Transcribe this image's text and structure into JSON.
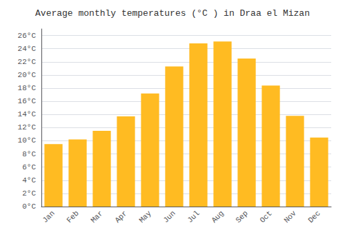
{
  "chart_data": {
    "type": "bar",
    "title": "Average monthly temperatures (°C ) in Draa el Mizan",
    "categories": [
      "Jan",
      "Feb",
      "Mar",
      "Apr",
      "May",
      "Jun",
      "Jul",
      "Aug",
      "Sep",
      "Oct",
      "Nov",
      "Dec"
    ],
    "values": [
      9.5,
      10.2,
      11.5,
      13.7,
      17.2,
      21.3,
      24.8,
      25.1,
      22.5,
      18.4,
      13.8,
      10.5
    ],
    "color": "#FFBB22",
    "ylim": [
      0,
      27
    ],
    "yticks": [
      {
        "value": 0,
        "label": "0°C"
      },
      {
        "value": 2,
        "label": "2°C"
      },
      {
        "value": 4,
        "label": "4°C"
      },
      {
        "value": 6,
        "label": "6°C"
      },
      {
        "value": 8,
        "label": "8°C"
      },
      {
        "value": 10,
        "label": "10°C"
      },
      {
        "value": 12,
        "label": "12°C"
      },
      {
        "value": 14,
        "label": "14°C"
      },
      {
        "value": 16,
        "label": "16°C"
      },
      {
        "value": 18,
        "label": "18°C"
      },
      {
        "value": 20,
        "label": "20°C"
      },
      {
        "value": 22,
        "label": "22°C"
      },
      {
        "value": 24,
        "label": "24°C"
      },
      {
        "value": 26,
        "label": "26°C"
      }
    ],
    "grid": true
  }
}
